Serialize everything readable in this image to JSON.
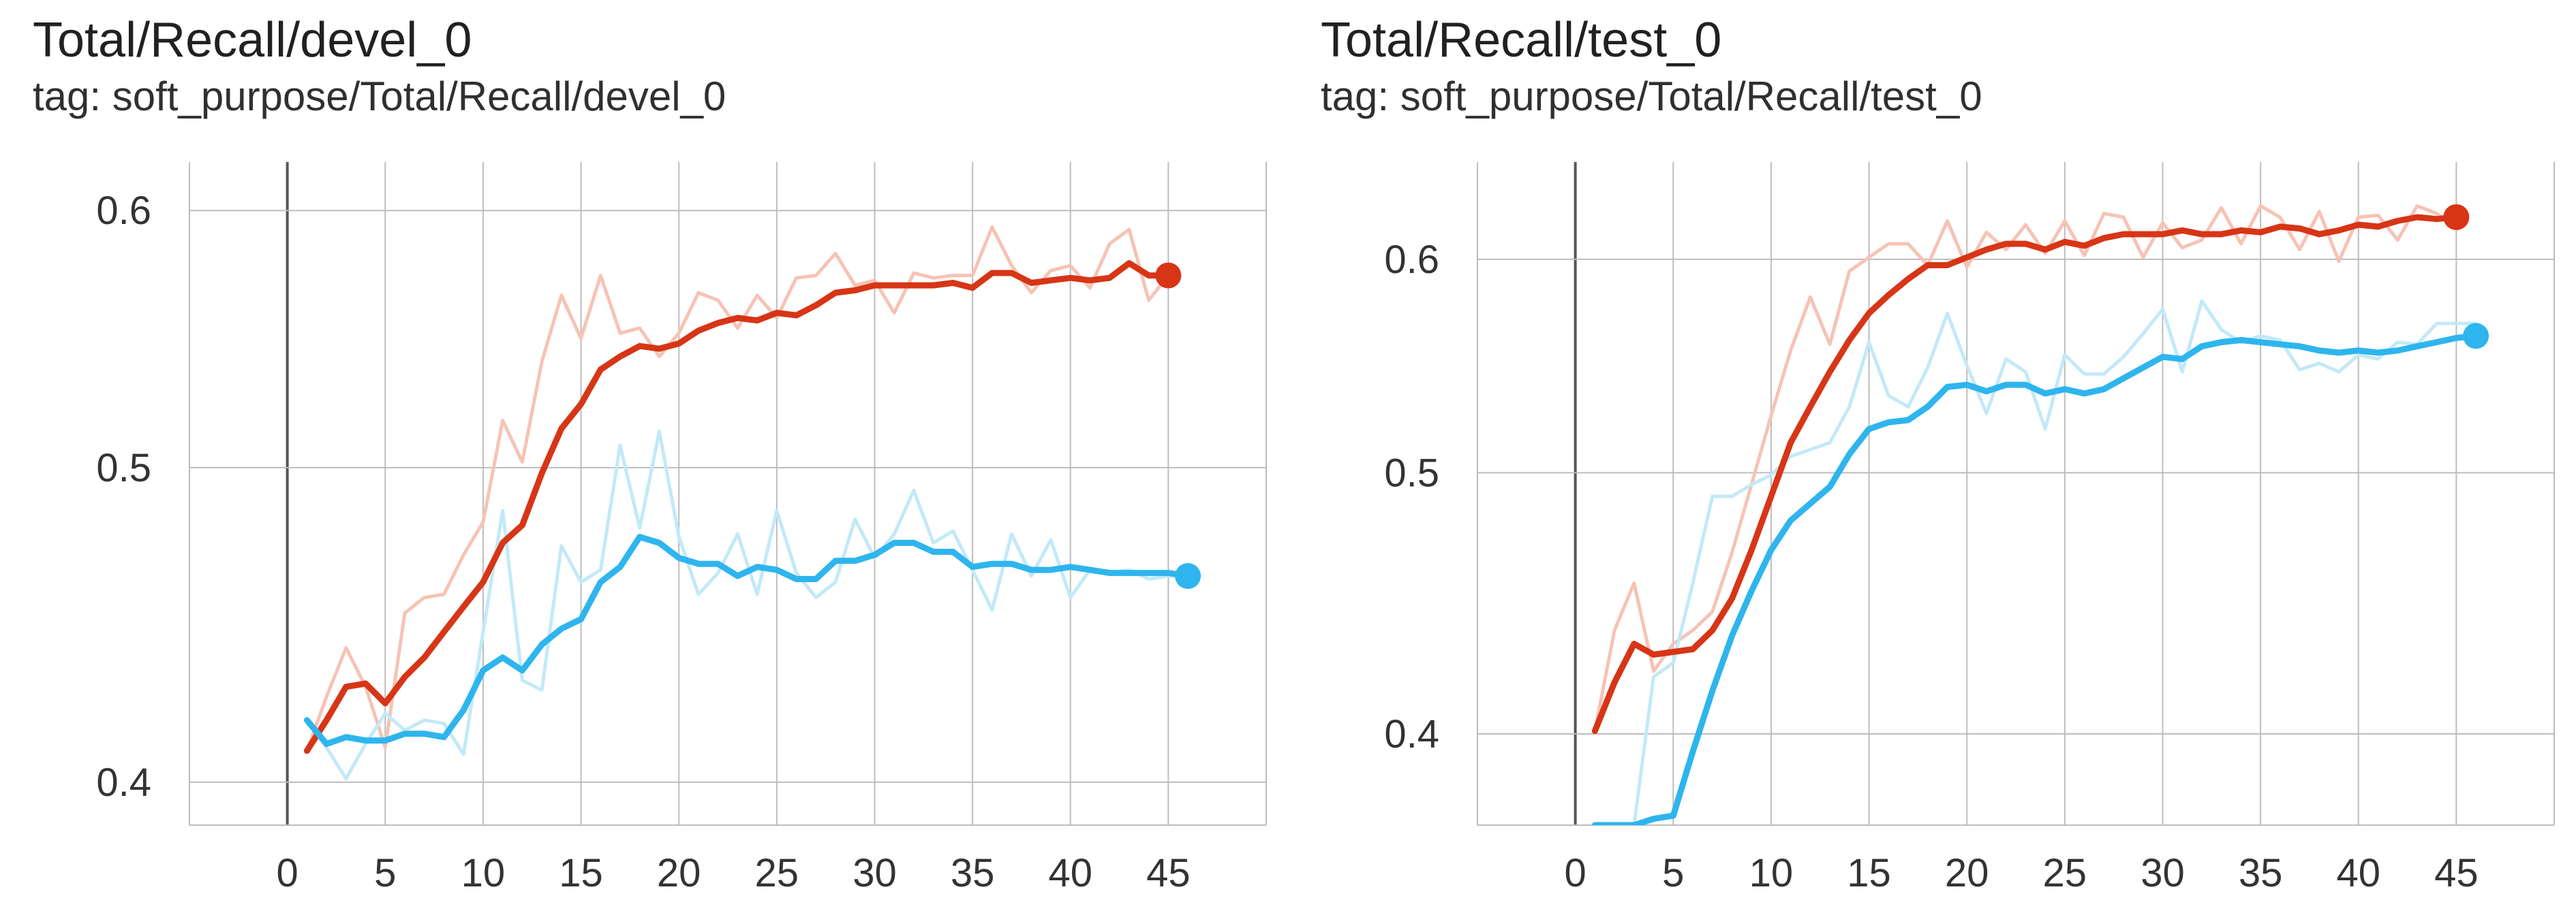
{
  "panels": [
    {
      "title": "Total/Recall/devel_0",
      "tag": "tag: soft_purpose/Total/Recall/devel_0"
    },
    {
      "title": "Total/Recall/test_0",
      "tag": "tag: soft_purpose/Total/Recall/test_0"
    }
  ],
  "colors": {
    "orange_smoothed": "#d73516",
    "orange_raw": "#f6c3b5",
    "blue_smoothed": "#2eb5ee",
    "blue_raw": "#c3e9f8",
    "grid": "#bdbdbd",
    "y_axis": "#555555"
  },
  "chart_data": [
    {
      "type": "line",
      "title": "Total/Recall/devel_0",
      "subtitle": "tag: soft_purpose/Total/Recall/devel_0",
      "xlabel": "",
      "ylabel": "",
      "scale": "log-y",
      "xlim": [
        -5,
        50
      ],
      "ylim": [
        0.388,
        0.621
      ],
      "xticks": [
        0,
        5,
        10,
        15,
        20,
        25,
        30,
        35,
        40,
        45
      ],
      "xtick_labels": [
        "0",
        "5",
        "10",
        "15",
        "20",
        "25",
        "30",
        "35",
        "40",
        "45"
      ],
      "yticks": [
        0.4,
        0.5,
        0.6
      ],
      "ytick_labels": [
        "0.4",
        "0.5",
        "0.6"
      ],
      "grid": true,
      "series": [
        {
          "color": "#d73516",
          "raw_color": "#f6c3b5",
          "x": [
            1,
            2,
            3,
            4,
            5,
            6,
            7,
            8,
            9,
            10,
            11,
            12,
            13,
            14,
            15,
            16,
            17,
            18,
            19,
            20,
            21,
            22,
            23,
            24,
            25,
            26,
            27,
            28,
            29,
            30,
            31,
            32,
            33,
            34,
            35,
            36,
            37,
            38,
            39,
            40,
            41,
            42,
            43,
            44,
            45
          ],
          "smoothed": [
            0.409,
            0.418,
            0.428,
            0.429,
            0.423,
            0.431,
            0.437,
            0.445,
            0.453,
            0.461,
            0.474,
            0.48,
            0.498,
            0.514,
            0.523,
            0.536,
            0.541,
            0.545,
            0.544,
            0.546,
            0.551,
            0.554,
            0.556,
            0.555,
            0.558,
            0.557,
            0.561,
            0.566,
            0.567,
            0.569,
            0.569,
            0.569,
            0.569,
            0.57,
            0.568,
            0.574,
            0.574,
            0.57,
            0.571,
            0.572,
            0.571,
            0.572,
            0.578,
            0.573,
            0.573
          ],
          "raw": [
            0.409,
            0.425,
            0.44,
            0.428,
            0.41,
            0.451,
            0.456,
            0.457,
            0.47,
            0.481,
            0.517,
            0.502,
            0.539,
            0.565,
            0.548,
            0.573,
            0.55,
            0.552,
            0.541,
            0.55,
            0.566,
            0.563,
            0.552,
            0.565,
            0.556,
            0.572,
            0.573,
            0.582,
            0.569,
            0.571,
            0.558,
            0.574,
            0.572,
            0.573,
            0.573,
            0.593,
            0.577,
            0.566,
            0.575,
            0.577,
            0.568,
            0.586,
            0.592,
            0.563,
            0.573
          ]
        },
        {
          "color": "#2eb5ee",
          "raw_color": "#c3e9f8",
          "x": [
            1,
            2,
            3,
            4,
            5,
            6,
            7,
            8,
            9,
            10,
            11,
            12,
            13,
            14,
            15,
            16,
            17,
            18,
            19,
            20,
            21,
            22,
            23,
            24,
            25,
            26,
            27,
            28,
            29,
            30,
            31,
            32,
            33,
            34,
            35,
            36,
            37,
            38,
            39,
            40,
            41,
            42,
            43,
            44,
            45,
            46
          ],
          "smoothed": [
            0.418,
            0.411,
            0.413,
            0.412,
            0.412,
            0.414,
            0.414,
            0.413,
            0.421,
            0.433,
            0.437,
            0.433,
            0.441,
            0.446,
            0.449,
            0.461,
            0.466,
            0.476,
            0.474,
            0.469,
            0.467,
            0.467,
            0.463,
            0.466,
            0.465,
            0.462,
            0.462,
            0.468,
            0.468,
            0.47,
            0.474,
            0.474,
            0.471,
            0.471,
            0.466,
            0.467,
            0.467,
            0.465,
            0.465,
            0.466,
            0.465,
            0.464,
            0.464,
            0.464,
            0.464,
            0.463
          ],
          "raw": [
            0.418,
            0.41,
            0.401,
            0.411,
            0.42,
            0.415,
            0.418,
            0.417,
            0.408,
            0.445,
            0.485,
            0.43,
            0.427,
            0.473,
            0.461,
            0.465,
            0.508,
            0.479,
            0.513,
            0.476,
            0.457,
            0.464,
            0.477,
            0.457,
            0.485,
            0.464,
            0.456,
            0.461,
            0.482,
            0.469,
            0.477,
            0.492,
            0.474,
            0.478,
            0.465,
            0.452,
            0.477,
            0.463,
            0.475,
            0.456,
            0.465,
            0.464,
            0.465,
            0.462,
            0.463,
            0.463
          ]
        }
      ]
    },
    {
      "type": "line",
      "title": "Total/Recall/test_0",
      "subtitle": "tag: soft_purpose/Total/Recall/test_0",
      "xlabel": "",
      "ylabel": "",
      "scale": "log-y",
      "xlim": [
        -5,
        50
      ],
      "ylim": [
        0.37,
        0.652
      ],
      "xticks": [
        0,
        5,
        10,
        15,
        20,
        25,
        30,
        35,
        40,
        45
      ],
      "xtick_labels": [
        "0",
        "5",
        "10",
        "15",
        "20",
        "25",
        "30",
        "35",
        "40",
        "45"
      ],
      "yticks": [
        0.4,
        0.5,
        0.6
      ],
      "ytick_labels": [
        "0.4",
        "0.5",
        "0.6"
      ],
      "grid": true,
      "series": [
        {
          "color": "#d73516",
          "raw_color": "#f6c3b5",
          "x": [
            1,
            2,
            3,
            4,
            5,
            6,
            7,
            8,
            9,
            10,
            11,
            12,
            13,
            14,
            15,
            16,
            17,
            18,
            19,
            20,
            21,
            22,
            23,
            24,
            25,
            26,
            27,
            28,
            29,
            30,
            31,
            32,
            33,
            34,
            35,
            36,
            37,
            38,
            39,
            40,
            41,
            42,
            43,
            44,
            45
          ],
          "smoothed": [
            0.401,
            0.418,
            0.432,
            0.428,
            0.429,
            0.43,
            0.437,
            0.449,
            0.468,
            0.49,
            0.513,
            0.529,
            0.545,
            0.56,
            0.573,
            0.582,
            0.59,
            0.597,
            0.597,
            0.601,
            0.605,
            0.608,
            0.608,
            0.605,
            0.609,
            0.607,
            0.611,
            0.613,
            0.613,
            0.613,
            0.615,
            0.613,
            0.613,
            0.615,
            0.614,
            0.617,
            0.616,
            0.613,
            0.615,
            0.618,
            0.617,
            0.62,
            0.622,
            0.621,
            0.622
          ],
          "raw": [
            0.401,
            0.437,
            0.455,
            0.422,
            0.432,
            0.437,
            0.444,
            0.467,
            0.495,
            0.525,
            0.555,
            0.581,
            0.558,
            0.594,
            0.601,
            0.608,
            0.608,
            0.597,
            0.62,
            0.596,
            0.614,
            0.605,
            0.618,
            0.603,
            0.62,
            0.602,
            0.624,
            0.622,
            0.601,
            0.619,
            0.606,
            0.61,
            0.627,
            0.608,
            0.628,
            0.622,
            0.605,
            0.625,
            0.599,
            0.622,
            0.623,
            0.61,
            0.628,
            0.624,
            0.616
          ]
        },
        {
          "color": "#2eb5ee",
          "raw_color": "#c3e9f8",
          "x": [
            1,
            2,
            3,
            4,
            5,
            6,
            7,
            8,
            9,
            10,
            11,
            12,
            13,
            14,
            15,
            16,
            17,
            18,
            19,
            20,
            21,
            22,
            23,
            24,
            25,
            26,
            27,
            28,
            29,
            30,
            31,
            32,
            33,
            34,
            35,
            36,
            37,
            38,
            39,
            40,
            41,
            42,
            43,
            44,
            45,
            46
          ],
          "smoothed": [
            0.37,
            0.37,
            0.37,
            0.372,
            0.373,
            0.394,
            0.415,
            0.435,
            0.452,
            0.468,
            0.48,
            0.487,
            0.494,
            0.508,
            0.519,
            0.522,
            0.523,
            0.529,
            0.538,
            0.539,
            0.536,
            0.539,
            0.539,
            0.535,
            0.537,
            0.535,
            0.537,
            0.542,
            0.547,
            0.552,
            0.551,
            0.557,
            0.559,
            0.56,
            0.559,
            0.558,
            0.557,
            0.555,
            0.554,
            0.555,
            0.554,
            0.555,
            0.557,
            0.559,
            0.561,
            0.562
          ],
          "raw": [
            0.37,
            0.37,
            0.37,
            0.42,
            0.425,
            0.455,
            0.49,
            0.49,
            0.495,
            0.499,
            0.507,
            0.51,
            0.513,
            0.529,
            0.559,
            0.534,
            0.529,
            0.547,
            0.573,
            0.548,
            0.526,
            0.551,
            0.545,
            0.519,
            0.553,
            0.544,
            0.544,
            0.552,
            0.563,
            0.575,
            0.545,
            0.579,
            0.565,
            0.559,
            0.562,
            0.56,
            0.546,
            0.549,
            0.545,
            0.553,
            0.551,
            0.559,
            0.558,
            0.568,
            0.568,
            0.568
          ]
        }
      ]
    }
  ]
}
